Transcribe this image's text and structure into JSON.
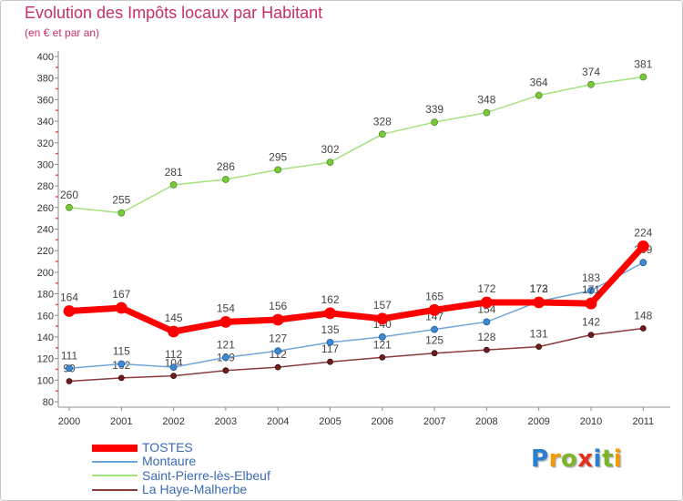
{
  "chart_data": {
    "type": "line",
    "title": "Evolution des Impôts locaux par Habitant",
    "subtitle": "(en € et par an)",
    "x": [
      "2000",
      "2001",
      "2002",
      "2003",
      "2004",
      "2005",
      "2006",
      "2007",
      "2008",
      "2009",
      "2010",
      "2011"
    ],
    "ylim": [
      80,
      400
    ],
    "yticks": [
      80,
      100,
      120,
      140,
      160,
      180,
      200,
      220,
      240,
      260,
      280,
      300,
      320,
      340,
      360,
      380,
      400
    ],
    "grid": false,
    "legend": "bottom-left",
    "series": [
      {
        "name": "TOSTES",
        "color": "#ff0000",
        "marker_color": "#ff0000",
        "marker_stroke": "#ff0000",
        "values": [
          164,
          167,
          145,
          154,
          156,
          162,
          157,
          165,
          172,
          172,
          171,
          224
        ]
      },
      {
        "name": "Montaure",
        "color": "#6fa6da",
        "marker_color": "#3d8ad0",
        "marker_stroke": "#1e5a96",
        "values": [
          111,
          115,
          112,
          121,
          127,
          135,
          140,
          147,
          154,
          173,
          183,
          209
        ]
      },
      {
        "name": "Saint-Pierre-lès-Elbeuf",
        "color": "#a3e27e",
        "marker_color": "#7cc83c",
        "marker_stroke": "#4f8f22",
        "values": [
          260,
          255,
          281,
          286,
          295,
          302,
          328,
          339,
          348,
          364,
          374,
          381
        ]
      },
      {
        "name": "La Haye-Malherbe",
        "color": "#8c3b3b",
        "marker_color": "#6e1c1c",
        "marker_stroke": "#3d0d0d",
        "values": [
          99,
          102,
          104,
          109,
          112,
          117,
          121,
          125,
          128,
          131,
          142,
          148
        ]
      }
    ]
  },
  "colors": {
    "title": "#c8305f",
    "legend_text": "#3b6bb5",
    "axis": "#8c8c8c",
    "minor_tick": "#e05050"
  },
  "logo": {
    "text": "Proxiti",
    "letter_colors": [
      "#2a7fd0",
      "#f39a00",
      "#7cb52a",
      "#e42d1c",
      "#2a7fd0",
      "#7cb52a",
      "#f39a00"
    ]
  }
}
